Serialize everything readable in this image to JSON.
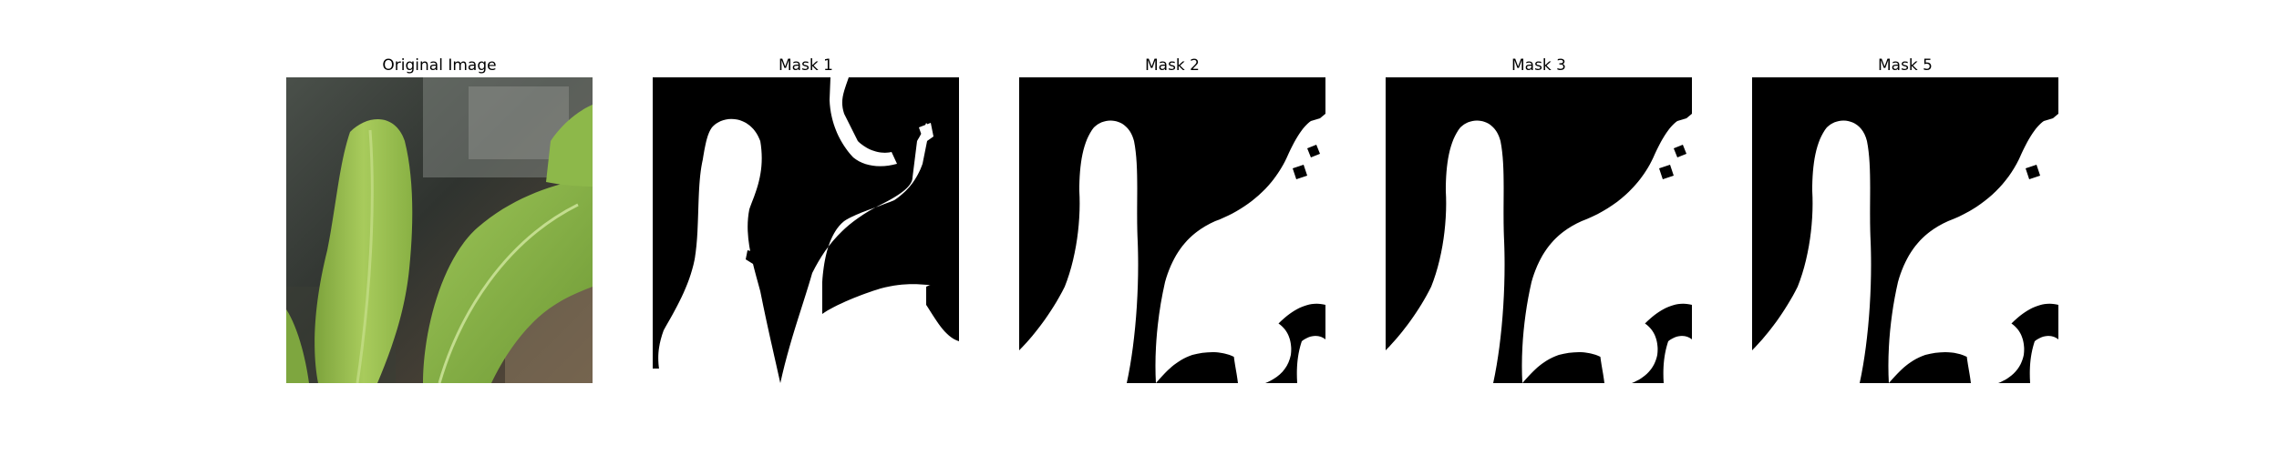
{
  "figure": {
    "panels": [
      {
        "title": "Original Image",
        "kind": "photo",
        "subject": "leaf-photo"
      },
      {
        "title": "Mask 1",
        "kind": "mask",
        "variant": "mask1"
      },
      {
        "title": "Mask 2",
        "kind": "mask",
        "variant": "mask2"
      },
      {
        "title": "Mask 3",
        "kind": "mask",
        "variant": "mask3"
      },
      {
        "title": "Mask 5",
        "kind": "mask",
        "variant": "mask5"
      }
    ]
  },
  "colors": {
    "mask_foreground": "#ffffff",
    "mask_background": "#000000",
    "leaf_light": "#b4d269",
    "leaf_mid": "#8fb64a",
    "leaf_dark": "#5f8a2e",
    "photo_background": "#3b3f3a"
  }
}
